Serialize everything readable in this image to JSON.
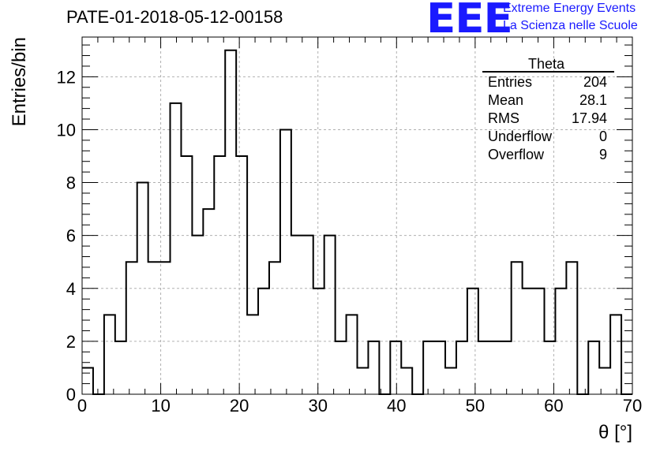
{
  "header": {
    "title": "PATE-01-2018-05-12-00158",
    "logo_mark": "EEE",
    "logo_line1": "Extreme Energy Events",
    "logo_line2": "La Scienza nelle Scuole"
  },
  "stats_box": {
    "title": "Theta",
    "rows": [
      {
        "label": "Entries",
        "value": "204"
      },
      {
        "label": "Mean",
        "value": "28.1"
      },
      {
        "label": "RMS",
        "value": "17.94"
      },
      {
        "label": "Underflow",
        "value": "0"
      },
      {
        "label": "Overflow",
        "value": "9"
      }
    ]
  },
  "colors": {
    "logo": "#1a1aff",
    "line": "#000000",
    "grid": "#b0b0b0"
  },
  "chart_data": {
    "type": "bar",
    "style": "step histogram",
    "xlabel": "θ [°]",
    "ylabel": "Entries/bin",
    "xlim": [
      0,
      70
    ],
    "ylim": [
      0,
      13.5
    ],
    "bin_width": 1.4,
    "bin_edges_start": 0,
    "values": [
      1,
      0,
      3,
      2,
      5,
      8,
      5,
      5,
      11,
      9,
      6,
      7,
      9,
      13,
      9,
      3,
      4,
      5,
      10,
      6,
      6,
      4,
      6,
      2,
      3,
      1,
      2,
      0,
      2,
      1,
      0,
      2,
      2,
      1,
      2,
      4,
      2,
      2,
      2,
      5,
      4,
      4,
      2,
      4,
      5,
      0,
      2,
      1,
      3,
      0
    ],
    "xticks": [
      0,
      10,
      20,
      30,
      40,
      50,
      60,
      70
    ],
    "yticks": [
      0,
      2,
      4,
      6,
      8,
      10,
      12
    ],
    "grid": true
  }
}
